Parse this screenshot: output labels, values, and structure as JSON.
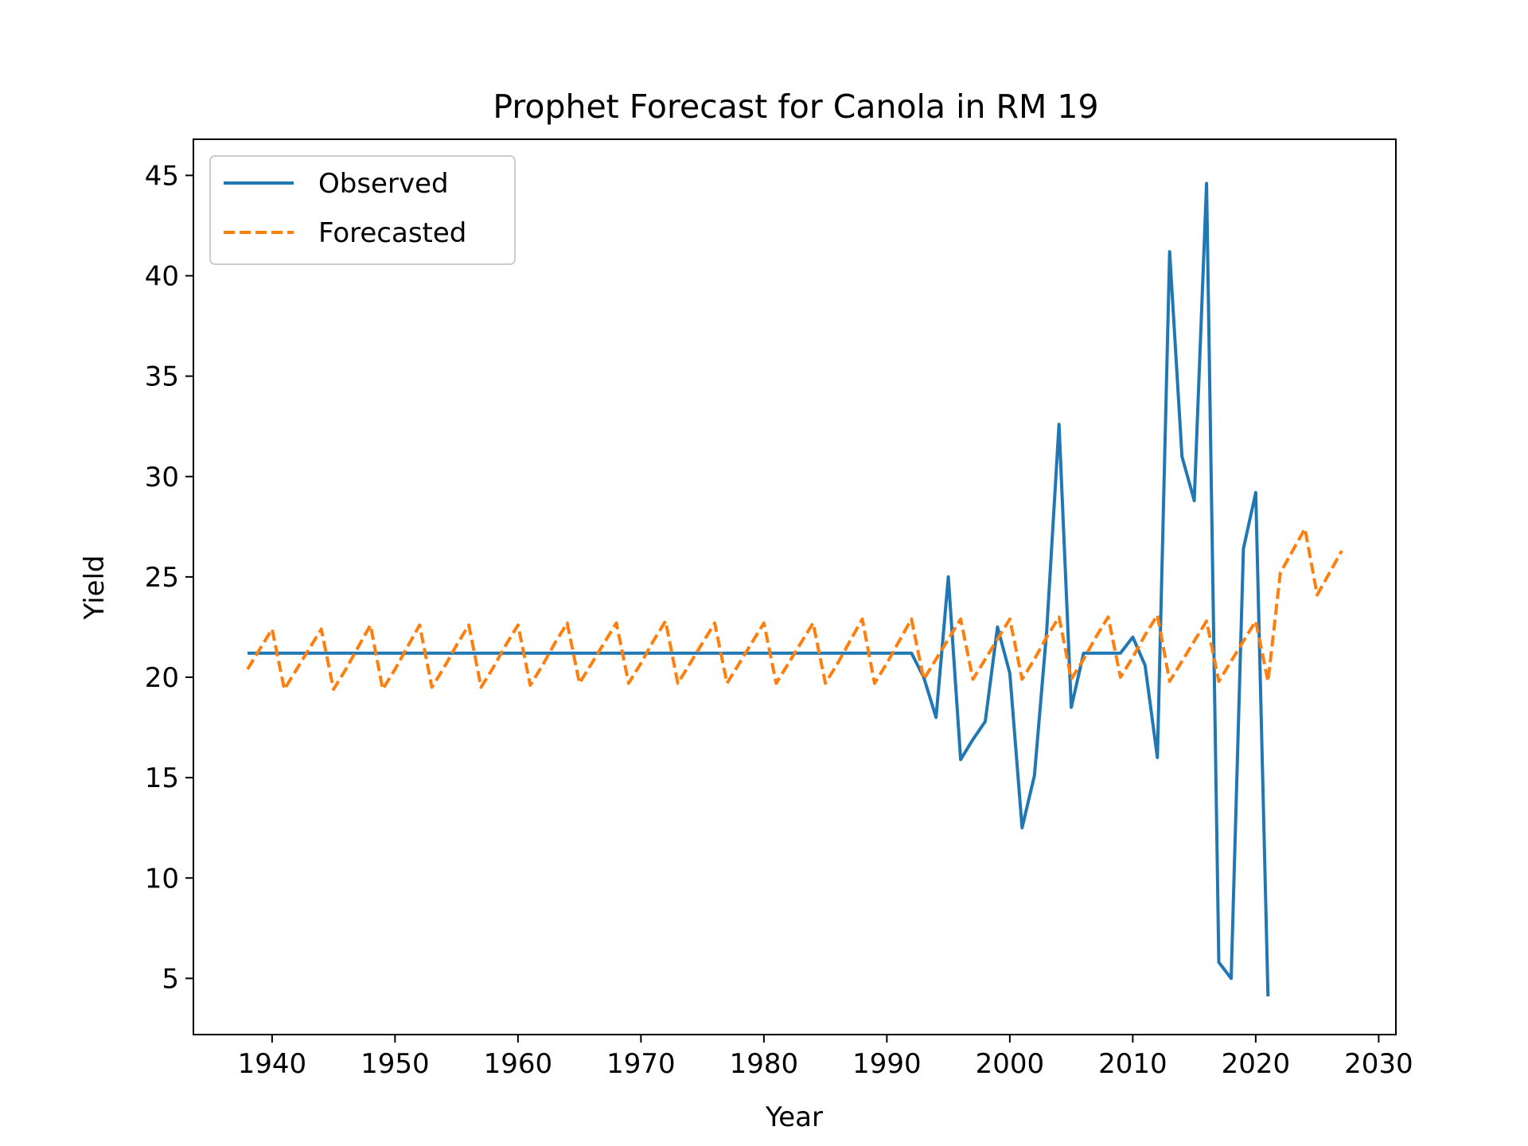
{
  "chart_data": {
    "type": "line",
    "title": "Prophet Forecast for Canola in RM 19",
    "xlabel": "Year",
    "ylabel": "Yield",
    "xlim": [
      1933.6,
      2031.4
    ],
    "ylim": [
      2.2,
      46.8
    ],
    "xticks": [
      1940,
      1950,
      1960,
      1970,
      1980,
      1990,
      2000,
      2010,
      2020,
      2030
    ],
    "yticks": [
      5,
      10,
      15,
      20,
      25,
      30,
      35,
      40,
      45
    ],
    "grid": false,
    "legend_position": "top-left",
    "series": [
      {
        "name": "Observed",
        "color": "#1f77b4",
        "style": "solid",
        "x": [
          1938,
          1939,
          1940,
          1941,
          1942,
          1943,
          1944,
          1945,
          1946,
          1947,
          1948,
          1949,
          1950,
          1951,
          1952,
          1953,
          1954,
          1955,
          1956,
          1957,
          1958,
          1959,
          1960,
          1961,
          1962,
          1963,
          1964,
          1965,
          1966,
          1967,
          1968,
          1969,
          1970,
          1971,
          1972,
          1973,
          1974,
          1975,
          1976,
          1977,
          1978,
          1979,
          1980,
          1981,
          1982,
          1983,
          1984,
          1985,
          1986,
          1987,
          1988,
          1989,
          1990,
          1991,
          1992,
          1993,
          1994,
          1995,
          1996,
          1997,
          1998,
          1999,
          2000,
          2001,
          2002,
          2003,
          2004,
          2005,
          2006,
          2007,
          2008,
          2009,
          2010,
          2011,
          2012,
          2013,
          2014,
          2015,
          2016,
          2017,
          2018,
          2019,
          2020,
          2021
        ],
        "y": [
          21.2,
          21.2,
          21.2,
          21.2,
          21.2,
          21.2,
          21.2,
          21.2,
          21.2,
          21.2,
          21.2,
          21.2,
          21.2,
          21.2,
          21.2,
          21.2,
          21.2,
          21.2,
          21.2,
          21.2,
          21.2,
          21.2,
          21.2,
          21.2,
          21.2,
          21.2,
          21.2,
          21.2,
          21.2,
          21.2,
          21.2,
          21.2,
          21.2,
          21.2,
          21.2,
          21.2,
          21.2,
          21.2,
          21.2,
          21.2,
          21.2,
          21.2,
          21.2,
          21.2,
          21.2,
          21.2,
          21.2,
          21.2,
          21.2,
          21.2,
          21.2,
          21.2,
          21.2,
          21.2,
          21.2,
          20.0,
          18.0,
          25.0,
          15.9,
          16.9,
          17.8,
          22.5,
          20.2,
          12.5,
          15.1,
          22.3,
          32.6,
          18.5,
          21.2,
          21.2,
          21.2,
          21.2,
          22.0,
          20.6,
          16.0,
          41.2,
          31.0,
          28.8,
          44.6,
          5.8,
          5.0,
          26.4,
          29.2,
          4.1
        ]
      },
      {
        "name": "Forecasted",
        "color": "#ff7f0e",
        "style": "dashed",
        "x": [
          1938,
          1939,
          1940,
          1941,
          1942,
          1943,
          1944,
          1945,
          1946,
          1947,
          1948,
          1949,
          1950,
          1951,
          1952,
          1953,
          1954,
          1955,
          1956,
          1957,
          1958,
          1959,
          1960,
          1961,
          1962,
          1963,
          1964,
          1965,
          1966,
          1967,
          1968,
          1969,
          1970,
          1971,
          1972,
          1973,
          1974,
          1975,
          1976,
          1977,
          1978,
          1979,
          1980,
          1981,
          1982,
          1983,
          1984,
          1985,
          1986,
          1987,
          1988,
          1989,
          1990,
          1991,
          1992,
          1993,
          1994,
          1995,
          1996,
          1997,
          1998,
          1999,
          2000,
          2001,
          2002,
          2003,
          2004,
          2005,
          2006,
          2007,
          2008,
          2009,
          2010,
          2011,
          2012,
          2013,
          2014,
          2015,
          2016,
          2017,
          2018,
          2019,
          2020,
          2021,
          2022,
          2023,
          2024,
          2025,
          2026,
          2027
        ],
        "y": [
          20.4,
          21.4,
          22.4,
          19.4,
          20.4,
          21.4,
          22.4,
          19.4,
          20.4,
          21.5,
          22.6,
          19.4,
          20.4,
          21.5,
          22.6,
          19.5,
          20.5,
          21.6,
          22.6,
          19.5,
          20.5,
          21.6,
          22.6,
          19.6,
          20.6,
          21.7,
          22.7,
          19.7,
          20.7,
          21.7,
          22.7,
          19.7,
          20.7,
          21.8,
          22.8,
          19.7,
          20.7,
          21.7,
          22.7,
          19.7,
          20.7,
          21.7,
          22.7,
          19.7,
          20.7,
          21.7,
          22.7,
          19.7,
          20.7,
          21.8,
          22.9,
          19.7,
          20.7,
          21.8,
          22.9,
          19.9,
          20.9,
          21.9,
          22.9,
          19.9,
          20.9,
          21.9,
          22.9,
          19.9,
          20.9,
          22.0,
          23.0,
          19.9,
          20.9,
          22.0,
          23.0,
          20.0,
          21.0,
          22.1,
          23.1,
          19.8,
          20.8,
          21.8,
          22.8,
          19.8,
          20.8,
          21.8,
          22.8,
          19.8,
          25.2,
          26.3,
          27.4,
          24.1,
          25.2,
          26.3
        ]
      }
    ]
  }
}
